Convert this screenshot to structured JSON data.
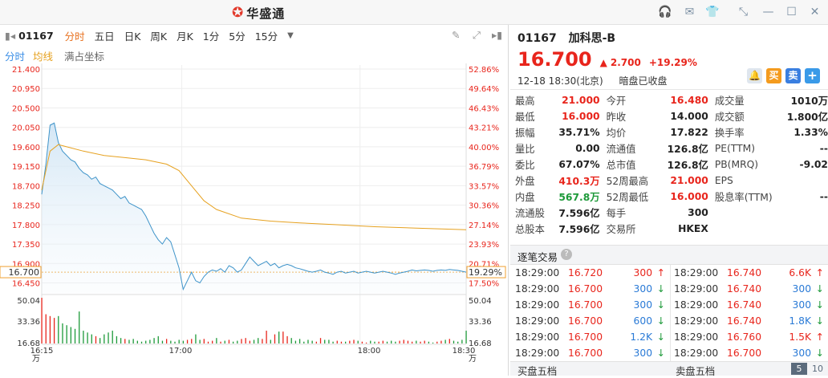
{
  "app": {
    "name": "华盛通",
    "logo_icon": "sina-eye-logo"
  },
  "stock": {
    "code": "01167",
    "name": "加科思-B",
    "price": "16.700",
    "change": "2.700",
    "change_pct": "+19.29%",
    "datetime": "12-18 18:30(北京)",
    "status": "暗盘已收盘"
  },
  "toolbar": {
    "code": "01167",
    "periods": [
      "分时",
      "五日",
      "日K",
      "周K",
      "月K",
      "1分",
      "5分",
      "15分"
    ],
    "active_period": "分时"
  },
  "subbar": {
    "tab1": "分时",
    "tab2": "均线",
    "tab3": "满占坐标"
  },
  "chart_data": {
    "type": "line",
    "y_price_ticks": [
      "21.400",
      "20.950",
      "20.500",
      "20.050",
      "19.600",
      "19.150",
      "18.700",
      "18.250",
      "17.800",
      "17.350",
      "16.900",
      "16.700",
      "16.450"
    ],
    "y_pct_ticks": [
      "52.86%",
      "49.64%",
      "46.43%",
      "43.21%",
      "40.00%",
      "36.79%",
      "33.57%",
      "30.36%",
      "27.14%",
      "23.93%",
      "20.71%",
      "19.29%",
      "17.50%"
    ],
    "current_price_tag": "16.700",
    "current_pct_tag": "19.29%",
    "ylim": [
      16.2,
      21.4
    ],
    "x_ticks": [
      "16:15",
      "17:00",
      "18:00",
      "18:30"
    ],
    "vol_ticks": [
      "50.04",
      "33.36",
      "16.68",
      "万"
    ],
    "series": [
      {
        "values": [
          [
            0,
            18.5
          ],
          [
            1,
            19.2
          ],
          [
            2,
            20.1
          ],
          [
            3,
            20.15
          ],
          [
            4,
            19.7
          ],
          [
            5,
            19.5
          ],
          [
            6,
            19.4
          ],
          [
            7,
            19.3
          ],
          [
            8,
            19.25
          ],
          [
            9,
            19.1
          ],
          [
            10,
            19.0
          ],
          [
            11,
            18.95
          ],
          [
            12,
            18.85
          ],
          [
            13,
            18.9
          ],
          [
            14,
            18.75
          ],
          [
            15,
            18.7
          ],
          [
            16,
            18.65
          ],
          [
            17,
            18.6
          ],
          [
            18,
            18.5
          ],
          [
            19,
            18.4
          ],
          [
            20,
            18.45
          ],
          [
            21,
            18.3
          ],
          [
            22,
            18.25
          ],
          [
            23,
            18.2
          ],
          [
            24,
            18.15
          ],
          [
            25,
            18.0
          ],
          [
            26,
            17.8
          ],
          [
            27,
            17.6
          ],
          [
            28,
            17.45
          ],
          [
            29,
            17.35
          ],
          [
            30,
            17.5
          ],
          [
            31,
            17.4
          ],
          [
            32,
            17.1
          ],
          [
            33,
            16.8
          ],
          [
            34,
            16.3
          ],
          [
            35,
            16.5
          ],
          [
            36,
            16.7
          ],
          [
            37,
            16.5
          ],
          [
            38,
            16.45
          ],
          [
            39,
            16.6
          ],
          [
            40,
            16.7
          ],
          [
            41,
            16.75
          ],
          [
            42,
            16.72
          ],
          [
            43,
            16.78
          ],
          [
            44,
            16.7
          ],
          [
            45,
            16.85
          ],
          [
            46,
            16.8
          ],
          [
            47,
            16.7
          ],
          [
            48,
            16.75
          ],
          [
            49,
            16.9
          ],
          [
            50,
            17.05
          ],
          [
            51,
            16.95
          ],
          [
            52,
            16.85
          ],
          [
            53,
            16.9
          ],
          [
            54,
            16.95
          ],
          [
            55,
            16.85
          ],
          [
            56,
            16.9
          ],
          [
            57,
            16.8
          ],
          [
            58,
            16.85
          ],
          [
            59,
            16.88
          ],
          [
            60,
            16.85
          ],
          [
            61,
            16.8
          ],
          [
            62,
            16.78
          ],
          [
            63,
            16.75
          ],
          [
            64,
            16.72
          ],
          [
            65,
            16.7
          ],
          [
            66,
            16.72
          ],
          [
            67,
            16.75
          ],
          [
            68,
            16.7
          ],
          [
            69,
            16.68
          ],
          [
            70,
            16.65
          ],
          [
            71,
            16.7
          ],
          [
            72,
            16.72
          ],
          [
            73,
            16.68
          ],
          [
            74,
            16.7
          ],
          [
            75,
            16.72
          ],
          [
            76,
            16.68
          ],
          [
            77,
            16.7
          ],
          [
            78,
            16.72
          ],
          [
            79,
            16.7
          ],
          [
            80,
            16.68
          ],
          [
            81,
            16.7
          ],
          [
            82,
            16.72
          ],
          [
            83,
            16.7
          ],
          [
            84,
            16.68
          ],
          [
            85,
            16.65
          ],
          [
            86,
            16.68
          ],
          [
            87,
            16.7
          ],
          [
            88,
            16.72
          ],
          [
            89,
            16.75
          ],
          [
            90,
            16.73
          ],
          [
            91,
            16.74
          ],
          [
            92,
            16.75
          ],
          [
            93,
            16.74
          ],
          [
            94,
            16.72
          ],
          [
            95,
            16.74
          ],
          [
            96,
            16.75
          ],
          [
            97,
            16.74
          ],
          [
            98,
            16.76
          ],
          [
            99,
            16.75
          ],
          [
            100,
            16.74
          ],
          [
            101,
            16.72
          ],
          [
            102,
            16.7
          ]
        ]
      },
      {
        "values": [
          [
            0,
            18.6
          ],
          [
            2,
            19.5
          ],
          [
            4,
            19.65
          ],
          [
            6,
            19.6
          ],
          [
            10,
            19.5
          ],
          [
            15,
            19.4
          ],
          [
            20,
            19.35
          ],
          [
            25,
            19.3
          ],
          [
            30,
            19.2
          ],
          [
            33,
            19.05
          ],
          [
            36,
            18.7
          ],
          [
            39,
            18.35
          ],
          [
            42,
            18.15
          ],
          [
            48,
            17.95
          ],
          [
            55,
            17.88
          ],
          [
            62,
            17.84
          ],
          [
            70,
            17.8
          ],
          [
            80,
            17.75
          ],
          [
            90,
            17.72
          ],
          [
            102,
            17.68
          ]
        ]
      }
    ],
    "volume": [
      50,
      32,
      30,
      28,
      30,
      22,
      20,
      18,
      16,
      35,
      14,
      12,
      10,
      8,
      6,
      10,
      12,
      14,
      8,
      6,
      5,
      4,
      5,
      3,
      2,
      3,
      4,
      6,
      8,
      3,
      5,
      3,
      2,
      4,
      3,
      4,
      5,
      10,
      4,
      5,
      2,
      3,
      6,
      2,
      3,
      4,
      2,
      3,
      5,
      6,
      3,
      4,
      6,
      5,
      14,
      4,
      10,
      13,
      13,
      8,
      6,
      3,
      5,
      2,
      4,
      3,
      2,
      6,
      4,
      4,
      2,
      3,
      2,
      2,
      3,
      4,
      3,
      2,
      1,
      3,
      2,
      2,
      3,
      2,
      3,
      2,
      3,
      4,
      3,
      2,
      3,
      2,
      3,
      2,
      1,
      2,
      3,
      4,
      5,
      3,
      2,
      4,
      14
    ]
  },
  "quote": {
    "rows": [
      [
        {
          "l": "最高",
          "v": "21.000",
          "c": "up"
        },
        {
          "l": "今开",
          "v": "16.480",
          "c": "up"
        },
        {
          "l": "成交量",
          "v": "1010万",
          "c": ""
        }
      ],
      [
        {
          "l": "最低",
          "v": "16.000",
          "c": "up"
        },
        {
          "l": "昨收",
          "v": "14.000",
          "c": ""
        },
        {
          "l": "成交额",
          "v": "1.800亿",
          "c": ""
        }
      ],
      [
        {
          "l": "振幅",
          "v": "35.71%",
          "c": ""
        },
        {
          "l": "均价",
          "v": "17.822",
          "c": ""
        },
        {
          "l": "换手率",
          "v": "1.33%",
          "c": ""
        }
      ],
      [
        {
          "l": "量比",
          "v": "0.00",
          "c": ""
        },
        {
          "l": "流通值",
          "v": "126.8亿",
          "c": ""
        },
        {
          "l": "PE(TTM)",
          "v": "--",
          "c": ""
        }
      ],
      [
        {
          "l": "委比",
          "v": "67.07%",
          "c": ""
        },
        {
          "l": "总市值",
          "v": "126.8亿",
          "c": ""
        },
        {
          "l": "PB(MRQ)",
          "v": "-9.02",
          "c": ""
        }
      ],
      [
        {
          "l": "外盘",
          "v": "410.3万",
          "c": "up"
        },
        {
          "l": "52周最高",
          "v": "21.000",
          "c": "up"
        },
        {
          "l": "EPS",
          "v": "",
          "c": ""
        }
      ],
      [
        {
          "l": "内盘",
          "v": "567.8万",
          "c": "down"
        },
        {
          "l": "52周最低",
          "v": "16.000",
          "c": "up"
        },
        {
          "l": "股息率(TTM)",
          "v": "--",
          "c": ""
        }
      ],
      [
        {
          "l": "流通股",
          "v": "7.596亿",
          "c": ""
        },
        {
          "l": "每手",
          "v": "300",
          "c": ""
        },
        {
          "l": "",
          "v": "",
          "c": ""
        }
      ],
      [
        {
          "l": "总股本",
          "v": "7.596亿",
          "c": ""
        },
        {
          "l": "交易所",
          "v": "HKEX",
          "c": ""
        },
        {
          "l": "",
          "v": "",
          "c": ""
        }
      ]
    ]
  },
  "ticks": {
    "title": "逐笔交易",
    "left": [
      {
        "t": "18:29:00",
        "p": "16.720",
        "q": "300",
        "d": "up"
      },
      {
        "t": "18:29:00",
        "p": "16.700",
        "q": "300",
        "d": "down"
      },
      {
        "t": "18:29:00",
        "p": "16.700",
        "q": "300",
        "d": "down"
      },
      {
        "t": "18:29:00",
        "p": "16.700",
        "q": "600",
        "d": "down"
      },
      {
        "t": "18:29:00",
        "p": "16.700",
        "q": "1.2K",
        "d": "down"
      },
      {
        "t": "18:29:00",
        "p": "16.700",
        "q": "300",
        "d": "down"
      }
    ],
    "right": [
      {
        "t": "18:29:00",
        "p": "16.740",
        "q": "6.6K",
        "d": "up"
      },
      {
        "t": "18:29:00",
        "p": "16.740",
        "q": "300",
        "d": "down"
      },
      {
        "t": "18:29:00",
        "p": "16.740",
        "q": "300",
        "d": "down"
      },
      {
        "t": "18:29:00",
        "p": "16.740",
        "q": "1.8K",
        "d": "down"
      },
      {
        "t": "18:29:00",
        "p": "16.760",
        "q": "1.5K",
        "d": "up"
      },
      {
        "t": "18:29:00",
        "p": "16.700",
        "q": "300",
        "d": "down"
      }
    ]
  },
  "orderbook": {
    "buy_title": "买盘五档",
    "sell_title": "卖盘五档",
    "depth_5": "5",
    "depth_10": "10"
  },
  "actions": {
    "buy": "买",
    "sell": "卖",
    "add": "+"
  },
  "colors": {
    "up": "#e8251c",
    "down": "#1e9a3a",
    "accent": "#e8711f",
    "price_line": "#3d93c9",
    "avg_line": "#e6a11f"
  }
}
